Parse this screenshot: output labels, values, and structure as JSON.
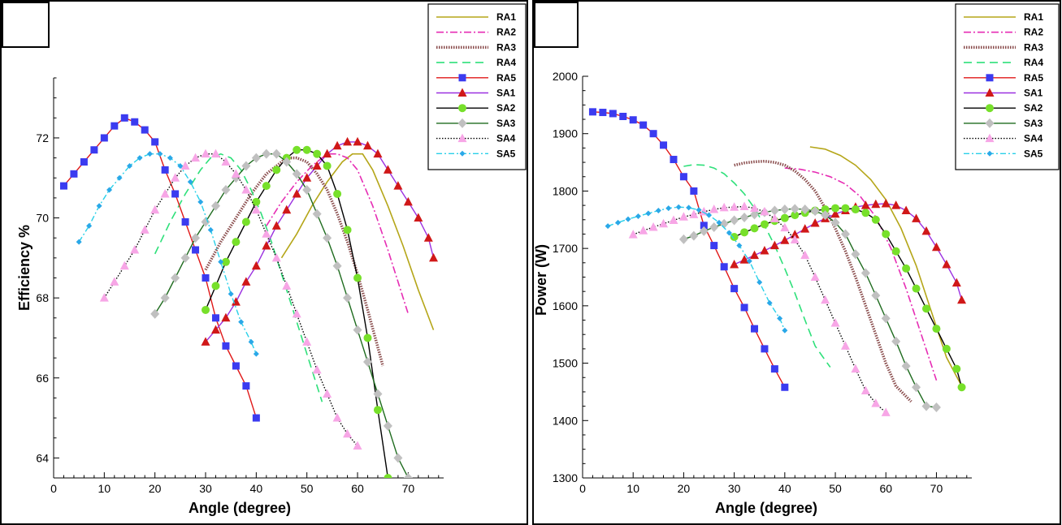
{
  "colors": {
    "RA1": "#b5a619",
    "RA2": "#e62db4",
    "RA3": "#8a4d4d",
    "RA4": "#2ee07a",
    "RA5": "#3b3bf0",
    "SA1": "#d01818",
    "SA2": "#77e02a",
    "SA3": "#c0c0c0",
    "SA4": "#f7a6e6",
    "SA5": "#2aa8e8",
    "line_RA5": "#e01818",
    "line_SA1": "#9b30e0",
    "line_SA2": "#000000",
    "line_SA3": "#1e6b1e",
    "line_SA4": "#000000",
    "line_SA5": "#28d0e8"
  },
  "legend_labels": [
    "RA1",
    "RA2",
    "RA3",
    "RA4",
    "RA5",
    "SA1",
    "SA2",
    "SA3",
    "SA4",
    "SA5"
  ],
  "chart_data": [
    {
      "type": "line",
      "xlabel": "Angle (degree)",
      "ylabel": "Efficiency %",
      "xlim": [
        0,
        77
      ],
      "ylim": [
        63.5,
        73.5
      ],
      "xticks": [
        0,
        10,
        20,
        30,
        40,
        50,
        60,
        70
      ],
      "yticks": [
        64,
        66,
        68,
        70,
        72
      ],
      "legend_position": "top-right",
      "series": [
        {
          "name": "RA1",
          "x": [
            45,
            48,
            51,
            54,
            57,
            59,
            61,
            63,
            66,
            69,
            72,
            75
          ],
          "y": [
            69.0,
            69.6,
            70.3,
            70.9,
            71.4,
            71.6,
            71.6,
            71.2,
            70.3,
            69.3,
            68.2,
            67.2
          ]
        },
        {
          "name": "RA2",
          "x": [
            42,
            45,
            48,
            51,
            54,
            56,
            58,
            60,
            63,
            66,
            70
          ],
          "y": [
            69.8,
            70.4,
            70.9,
            71.3,
            71.6,
            71.6,
            71.5,
            71.2,
            70.3,
            69.2,
            67.6
          ]
        },
        {
          "name": "RA3",
          "x": [
            30,
            33,
            36,
            39,
            42,
            44,
            46,
            48,
            50,
            52,
            54,
            56,
            58,
            60,
            62,
            65
          ],
          "y": [
            68.7,
            69.4,
            70.0,
            70.6,
            71.1,
            71.3,
            71.5,
            71.5,
            71.4,
            71.1,
            70.7,
            70.1,
            69.4,
            68.6,
            67.7,
            66.3
          ]
        },
        {
          "name": "RA4",
          "x": [
            20,
            23,
            26,
            29,
            31,
            33,
            35,
            37,
            39,
            41,
            43,
            45,
            47,
            49,
            51,
            53
          ],
          "y": [
            69.1,
            69.9,
            70.6,
            71.2,
            71.5,
            71.6,
            71.5,
            71.2,
            70.7,
            70.1,
            69.4,
            68.6,
            67.8,
            67.0,
            66.2,
            65.4
          ]
        },
        {
          "name": "RA5",
          "x": [
            2,
            4,
            6,
            8,
            10,
            12,
            14,
            16,
            18,
            20,
            22,
            24,
            26,
            28,
            30,
            32,
            34,
            36,
            38,
            40
          ],
          "y": [
            70.8,
            71.1,
            71.4,
            71.7,
            72.0,
            72.3,
            72.5,
            72.4,
            72.2,
            71.9,
            71.2,
            70.6,
            69.9,
            69.2,
            68.5,
            67.5,
            66.8,
            66.3,
            65.8,
            65.0
          ]
        },
        {
          "name": "SA1",
          "x": [
            30,
            32,
            34,
            36,
            38,
            40,
            42,
            44,
            46,
            48,
            50,
            52,
            54,
            56,
            58,
            60,
            62,
            64,
            66,
            68,
            70,
            72,
            74,
            75
          ],
          "y": [
            66.9,
            67.2,
            67.5,
            67.9,
            68.4,
            68.8,
            69.3,
            69.8,
            70.2,
            70.6,
            71.0,
            71.3,
            71.6,
            71.8,
            71.9,
            71.9,
            71.8,
            71.6,
            71.2,
            70.8,
            70.4,
            70.0,
            69.5,
            69.0
          ]
        },
        {
          "name": "SA2",
          "x": [
            30,
            32,
            34,
            36,
            38,
            40,
            42,
            44,
            46,
            48,
            50,
            52,
            54,
            56,
            58,
            60,
            62,
            64,
            66
          ],
          "y": [
            67.7,
            68.3,
            68.9,
            69.4,
            69.9,
            70.4,
            70.8,
            71.2,
            71.5,
            71.7,
            71.7,
            71.6,
            71.3,
            70.6,
            69.7,
            68.5,
            67.0,
            65.2,
            63.5
          ]
        },
        {
          "name": "SA3",
          "x": [
            20,
            22,
            24,
            26,
            28,
            30,
            32,
            34,
            36,
            38,
            40,
            42,
            44,
            46,
            48,
            50,
            52,
            54,
            56,
            58,
            60,
            62,
            64,
            66,
            68,
            70
          ],
          "y": [
            67.6,
            68.0,
            68.5,
            69.0,
            69.5,
            69.9,
            70.3,
            70.7,
            71.0,
            71.3,
            71.5,
            71.6,
            71.6,
            71.4,
            71.1,
            70.7,
            70.1,
            69.5,
            68.8,
            68.0,
            67.2,
            66.4,
            65.6,
            64.8,
            64.0,
            63.5
          ]
        },
        {
          "name": "SA4",
          "x": [
            10,
            12,
            14,
            16,
            18,
            20,
            22,
            24,
            26,
            28,
            30,
            32,
            34,
            36,
            38,
            40,
            42,
            44,
            46,
            48,
            50,
            52,
            54,
            56,
            58,
            60
          ],
          "y": [
            68.0,
            68.4,
            68.8,
            69.2,
            69.7,
            70.2,
            70.6,
            71.0,
            71.3,
            71.5,
            71.6,
            71.6,
            71.4,
            71.1,
            70.7,
            70.2,
            69.6,
            69.0,
            68.3,
            67.6,
            66.9,
            66.2,
            65.6,
            65.0,
            64.6,
            64.3
          ]
        },
        {
          "name": "SA5",
          "x": [
            5,
            7,
            9,
            11,
            13,
            15,
            17,
            19,
            21,
            23,
            25,
            27,
            29,
            31,
            33,
            35,
            37,
            39,
            40
          ],
          "y": [
            69.4,
            69.8,
            70.3,
            70.7,
            71.0,
            71.3,
            71.5,
            71.6,
            71.6,
            71.5,
            71.3,
            70.9,
            70.4,
            69.7,
            68.9,
            68.1,
            67.4,
            66.9,
            66.6
          ]
        }
      ]
    },
    {
      "type": "line",
      "xlabel": "Angle (degree)",
      "ylabel": "Power (W)",
      "xlim": [
        0,
        77
      ],
      "ylim": [
        1300,
        2000
      ],
      "xticks": [
        0,
        10,
        20,
        30,
        40,
        50,
        60,
        70
      ],
      "yticks": [
        1300,
        1400,
        1500,
        1600,
        1700,
        1800,
        1900,
        2000
      ],
      "legend_position": "top-right",
      "series": [
        {
          "name": "RA1",
          "x": [
            45,
            48,
            51,
            54,
            57,
            60,
            63,
            66,
            69,
            72,
            75
          ],
          "y": [
            1877,
            1873,
            1862,
            1845,
            1820,
            1785,
            1735,
            1670,
            1590,
            1510,
            1460
          ]
        },
        {
          "name": "RA2",
          "x": [
            40,
            43,
            46,
            49,
            52,
            55,
            58,
            61,
            64,
            67,
            70
          ],
          "y": [
            1840,
            1838,
            1833,
            1825,
            1812,
            1790,
            1755,
            1700,
            1630,
            1550,
            1470
          ]
        },
        {
          "name": "RA3",
          "x": [
            30,
            32,
            34,
            36,
            38,
            40,
            42,
            44,
            46,
            48,
            50,
            52,
            54,
            56,
            58,
            60,
            62,
            65
          ],
          "y": [
            1845,
            1849,
            1851,
            1852,
            1850,
            1845,
            1835,
            1820,
            1800,
            1770,
            1735,
            1695,
            1650,
            1600,
            1550,
            1500,
            1460,
            1433
          ]
        },
        {
          "name": "RA4",
          "x": [
            20,
            22,
            24,
            26,
            28,
            30,
            32,
            34,
            36,
            38,
            40,
            42,
            44,
            46,
            48,
            49
          ],
          "y": [
            1843,
            1846,
            1845,
            1840,
            1830,
            1814,
            1795,
            1770,
            1740,
            1705,
            1665,
            1622,
            1575,
            1530,
            1505,
            1493
          ]
        },
        {
          "name": "RA5",
          "x": [
            2,
            4,
            6,
            8,
            10,
            12,
            14,
            16,
            18,
            20,
            22,
            24,
            26,
            28,
            30,
            32,
            34,
            36,
            38,
            40
          ],
          "y": [
            1938,
            1937,
            1935,
            1930,
            1924,
            1915,
            1900,
            1880,
            1855,
            1825,
            1800,
            1740,
            1705,
            1668,
            1630,
            1597,
            1560,
            1525,
            1490,
            1458
          ]
        },
        {
          "name": "SA1",
          "x": [
            30,
            32,
            34,
            36,
            38,
            40,
            42,
            44,
            46,
            48,
            50,
            52,
            54,
            56,
            58,
            60,
            62,
            64,
            66,
            68,
            70,
            72,
            74,
            75
          ],
          "y": [
            1672,
            1680,
            1688,
            1696,
            1705,
            1714,
            1724,
            1734,
            1744,
            1752,
            1760,
            1766,
            1772,
            1775,
            1777,
            1778,
            1775,
            1766,
            1752,
            1730,
            1702,
            1672,
            1640,
            1610
          ]
        },
        {
          "name": "SA2",
          "x": [
            30,
            32,
            34,
            36,
            38,
            40,
            42,
            44,
            46,
            48,
            50,
            52,
            54,
            56,
            58,
            60,
            62,
            64,
            66,
            68,
            70,
            72,
            74,
            75
          ],
          "y": [
            1720,
            1728,
            1735,
            1742,
            1748,
            1753,
            1758,
            1762,
            1766,
            1768,
            1770,
            1770,
            1768,
            1762,
            1750,
            1725,
            1695,
            1665,
            1630,
            1595,
            1560,
            1525,
            1490,
            1458
          ]
        },
        {
          "name": "SA3",
          "x": [
            20,
            22,
            24,
            26,
            28,
            30,
            32,
            34,
            36,
            38,
            40,
            42,
            44,
            46,
            48,
            50,
            52,
            54,
            56,
            58,
            60,
            62,
            64,
            66,
            68,
            70
          ],
          "y": [
            1716,
            1722,
            1730,
            1737,
            1743,
            1749,
            1754,
            1759,
            1763,
            1766,
            1768,
            1769,
            1768,
            1765,
            1758,
            1745,
            1725,
            1690,
            1657,
            1618,
            1578,
            1538,
            1495,
            1458,
            1425,
            1423
          ]
        },
        {
          "name": "SA4",
          "x": [
            10,
            12,
            14,
            16,
            18,
            20,
            22,
            24,
            26,
            28,
            30,
            32,
            34,
            36,
            38,
            40,
            42,
            44,
            46,
            48,
            50,
            52,
            54,
            56,
            58,
            60
          ],
          "y": [
            1724,
            1731,
            1737,
            1743,
            1749,
            1755,
            1759,
            1764,
            1768,
            1771,
            1772,
            1773,
            1770,
            1764,
            1752,
            1736,
            1715,
            1688,
            1650,
            1610,
            1570,
            1530,
            1490,
            1452,
            1430,
            1414
          ]
        },
        {
          "name": "SA5",
          "x": [
            5,
            7,
            9,
            11,
            13,
            15,
            17,
            19,
            21,
            23,
            25,
            27,
            29,
            31,
            33,
            35,
            37,
            39,
            40
          ],
          "y": [
            1739,
            1745,
            1751,
            1756,
            1761,
            1766,
            1770,
            1772,
            1771,
            1767,
            1758,
            1745,
            1727,
            1705,
            1678,
            1641,
            1605,
            1578,
            1557
          ]
        }
      ]
    }
  ]
}
